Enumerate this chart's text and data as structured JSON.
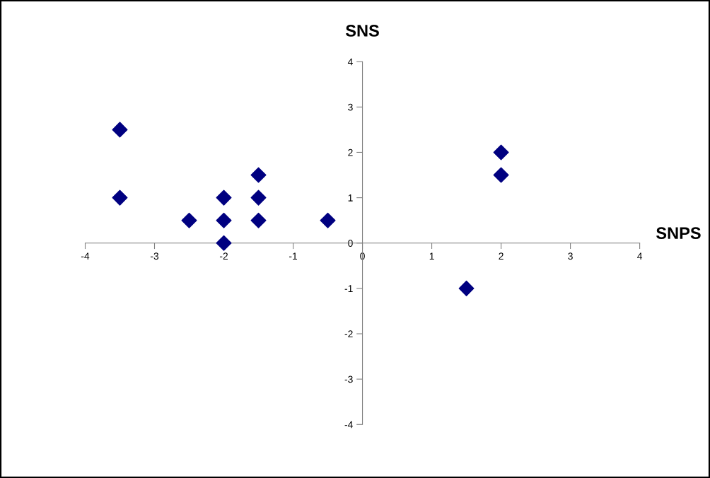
{
  "chart_data": {
    "type": "scatter",
    "xlabel": "SNPS",
    "ylabel": "SNS",
    "x": [
      -3.5,
      -3.5,
      -2.5,
      -2,
      -2,
      -2,
      -1.5,
      -1.5,
      -1.5,
      -0.5,
      2,
      2,
      1.5
    ],
    "series": [
      {
        "color": "#000080",
        "values": [
          2.5,
          1,
          0.5,
          1,
          0.5,
          0,
          1.5,
          1,
          0.5,
          0.5,
          2,
          1.5,
          -1
        ]
      }
    ],
    "xlim": [
      -4,
      4
    ],
    "ylim": [
      -4,
      4
    ],
    "xticks": [
      -4,
      -3,
      -2,
      -1,
      0,
      1,
      2,
      3,
      4
    ],
    "yticks": [
      -4,
      -3,
      -2,
      -1,
      0,
      1,
      2,
      3,
      4
    ],
    "grid": false,
    "legend": false,
    "marker": "diamond"
  }
}
